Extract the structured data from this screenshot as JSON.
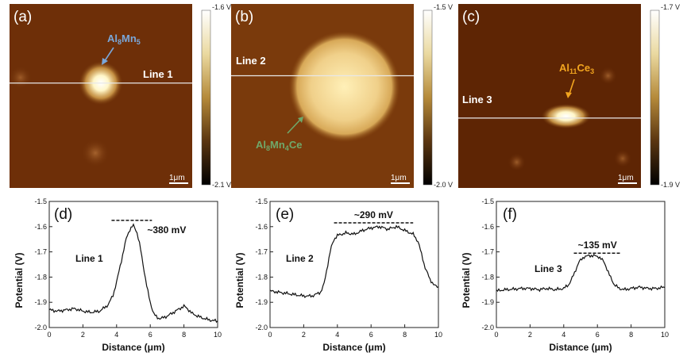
{
  "map_panels": [
    {
      "letter": "(a)",
      "line_label": "Line 1",
      "phase_label": "Al8Mn5",
      "phase_color": "#7aa7d9",
      "colorbar_top": "-1.6 V",
      "colorbar_bottom": "-2.1 V",
      "scale_bar": "1μm",
      "features": [
        {
          "type": "particle",
          "cx_um": 5.0,
          "cy_um": 4.3,
          "r_um": 1.0,
          "intensity": 1.0
        },
        {
          "type": "spot",
          "cx_um": 4.7,
          "cy_um": 8.1,
          "r_um": 0.5,
          "intensity": 0.35
        },
        {
          "type": "spot",
          "cx_um": 0.6,
          "cy_um": 4.0,
          "r_um": 0.4,
          "intensity": 0.25
        }
      ],
      "line_y_um": 4.3
    },
    {
      "letter": "(b)",
      "line_label": "Line 2",
      "phase_label": "Al8Mn4Ce",
      "phase_color": "#6fa86a",
      "colorbar_top": "-1.5 V",
      "colorbar_bottom": "-2.0 V",
      "scale_bar": "1μm",
      "features": [
        {
          "type": "particle",
          "cx_um": 6.2,
          "cy_um": 4.5,
          "r_um": 2.9,
          "intensity": 0.92
        }
      ],
      "line_y_um": 3.9
    },
    {
      "letter": "(c)",
      "line_label": "Line 3",
      "phase_label": "Al11Ce3",
      "phase_color": "#f2a51f",
      "colorbar_top": "-1.7 V",
      "colorbar_bottom": "-1.9 V",
      "scale_bar": "1μm",
      "features": [
        {
          "type": "particle",
          "cx_um": 5.9,
          "cy_um": 6.1,
          "r_um": 0.9,
          "intensity": 1.0
        },
        {
          "type": "spot",
          "cx_um": 8.2,
          "cy_um": 3.9,
          "r_um": 0.3,
          "intensity": 0.3
        },
        {
          "type": "spot",
          "cx_um": 3.2,
          "cy_um": 8.6,
          "r_um": 0.3,
          "intensity": 0.3
        },
        {
          "type": "spot",
          "cx_um": 9.0,
          "cy_um": 8.4,
          "r_um": 0.3,
          "intensity": 0.25
        }
      ],
      "line_y_um": 6.2
    }
  ],
  "chart_data": [
    {
      "type": "line",
      "panel": "(d)",
      "series_label": "Line 1",
      "annotation": "~380 mV",
      "annotation_y": -1.575,
      "annotation_x_range": [
        3.7,
        6.1
      ],
      "xlabel": "Distance (μm)",
      "ylabel": "Potential (V)",
      "xlim": [
        0,
        10
      ],
      "ylim": [
        -2.0,
        -1.5
      ],
      "xticks": [
        0,
        2,
        4,
        6,
        8,
        10
      ],
      "yticks": [
        -1.5,
        -1.6,
        -1.7,
        -1.8,
        -1.9,
        -2.0
      ],
      "x": [
        0,
        0.5,
        1.0,
        1.5,
        2.0,
        2.5,
        3.0,
        3.5,
        3.8,
        4.0,
        4.2,
        4.4,
        4.6,
        4.8,
        5.0,
        5.2,
        5.4,
        5.6,
        5.8,
        6.0,
        6.2,
        6.4,
        6.6,
        7.0,
        7.5,
        8.0,
        8.2,
        8.5,
        9.0,
        9.5,
        10.0
      ],
      "y": [
        -1.93,
        -1.935,
        -1.93,
        -1.925,
        -1.935,
        -1.94,
        -1.935,
        -1.91,
        -1.87,
        -1.82,
        -1.76,
        -1.7,
        -1.64,
        -1.61,
        -1.595,
        -1.62,
        -1.68,
        -1.76,
        -1.84,
        -1.9,
        -1.945,
        -1.96,
        -1.965,
        -1.955,
        -1.935,
        -1.915,
        -1.925,
        -1.945,
        -1.96,
        -1.97,
        -1.975
      ]
    },
    {
      "type": "line",
      "panel": "(e)",
      "series_label": "Line 2",
      "annotation": "~290 mV",
      "annotation_y": -1.585,
      "annotation_x_range": [
        3.8,
        8.5
      ],
      "xlabel": "Distance (μm)",
      "ylabel": "Potential (V)",
      "xlim": [
        0,
        10
      ],
      "ylim": [
        -2.0,
        -1.5
      ],
      "xticks": [
        0,
        2,
        4,
        6,
        8,
        10
      ],
      "yticks": [
        -1.5,
        -1.6,
        -1.7,
        -1.8,
        -1.9,
        -2.0
      ],
      "x": [
        0,
        0.5,
        1.0,
        1.5,
        2.0,
        2.5,
        3.0,
        3.2,
        3.4,
        3.6,
        3.8,
        4.0,
        4.5,
        5.0,
        5.5,
        6.0,
        6.5,
        7.0,
        7.5,
        8.0,
        8.5,
        8.8,
        9.0,
        9.2,
        9.5,
        9.8,
        10.0
      ],
      "y": [
        -1.855,
        -1.86,
        -1.865,
        -1.87,
        -1.875,
        -1.875,
        -1.86,
        -1.83,
        -1.76,
        -1.69,
        -1.65,
        -1.635,
        -1.625,
        -1.63,
        -1.615,
        -1.605,
        -1.6,
        -1.61,
        -1.6,
        -1.615,
        -1.63,
        -1.66,
        -1.71,
        -1.76,
        -1.81,
        -1.835,
        -1.84
      ]
    },
    {
      "type": "line",
      "panel": "(f)",
      "series_label": "Line 3",
      "annotation": "~135 mV",
      "annotation_y": -1.705,
      "annotation_x_range": [
        4.6,
        7.4
      ],
      "xlabel": "Distance (μm)",
      "ylabel": "Potential (V)",
      "xlim": [
        0,
        10
      ],
      "ylim": [
        -2.0,
        -1.5
      ],
      "xticks": [
        0,
        2,
        4,
        6,
        8,
        10
      ],
      "yticks": [
        -1.5,
        -1.6,
        -1.7,
        -1.8,
        -1.9,
        -2.0
      ],
      "x": [
        0,
        0.5,
        1.0,
        1.5,
        2.0,
        2.5,
        3.0,
        3.5,
        4.0,
        4.3,
        4.6,
        4.9,
        5.2,
        5.5,
        5.8,
        6.1,
        6.4,
        6.7,
        7.0,
        7.3,
        7.6,
        8.0,
        8.5,
        9.0,
        9.5,
        10.0
      ],
      "y": [
        -1.855,
        -1.85,
        -1.848,
        -1.845,
        -1.845,
        -1.85,
        -1.845,
        -1.85,
        -1.845,
        -1.83,
        -1.79,
        -1.74,
        -1.72,
        -1.715,
        -1.715,
        -1.72,
        -1.74,
        -1.79,
        -1.83,
        -1.845,
        -1.85,
        -1.845,
        -1.84,
        -1.845,
        -1.845,
        -1.84
      ]
    }
  ]
}
